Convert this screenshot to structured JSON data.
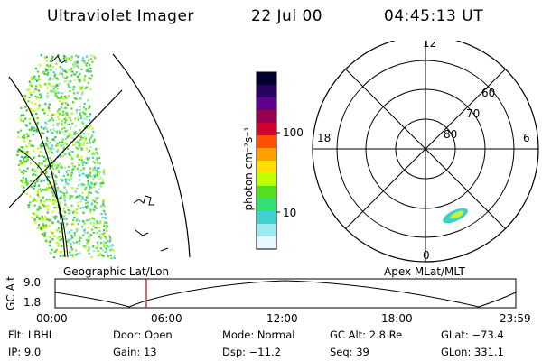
{
  "header": {
    "instrument": "Ultraviolet Imager",
    "date": "22 Jul 00",
    "time": "04:45:13 UT"
  },
  "colorbar": {
    "unit_label": "photon cm⁻²s⁻¹",
    "ticks": [
      "100",
      "10"
    ],
    "colors": [
      "#000030",
      "#2a0060",
      "#600090",
      "#9a0050",
      "#d00030",
      "#ff5000",
      "#ffa000",
      "#ffe000",
      "#c0ff00",
      "#50e020",
      "#30e070",
      "#40d0d0",
      "#a0e8f0",
      "#e8f8ff"
    ]
  },
  "left_panel": {
    "caption": "Geographic Lat/Lon"
  },
  "right_panel": {
    "caption": "Apex MLat/MLT",
    "mlt_labels": {
      "top": "12",
      "left": "18",
      "right": "6",
      "bottom": "0"
    },
    "lat_labels": [
      "60",
      "70",
      "80"
    ]
  },
  "altitude_plot": {
    "ylabel": "GC Alt",
    "yticks": [
      "9.0",
      "1.8"
    ],
    "xticks": [
      "00:00",
      "06:00",
      "12:00",
      "18:00",
      "23:59"
    ],
    "marker_time_fraction": 0.198
  },
  "info": {
    "row1": {
      "flt": "Flt: LBHL",
      "door": "Door: Open",
      "mode": "Mode: Normal",
      "gcalt": "GC Alt: 2.8 Re",
      "glat": "GLat: −73.4"
    },
    "row2": {
      "ip": "IP:  9.0",
      "gain": "Gain: 13",
      "dsp": "Dsp:  −11.2",
      "seq": "Seq: 39",
      "glon": "GLon: 331.1"
    }
  }
}
